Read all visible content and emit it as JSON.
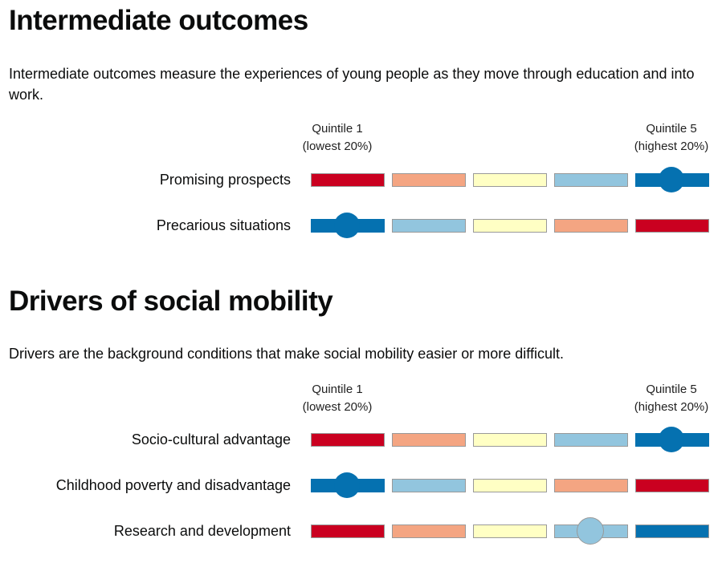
{
  "colors": {
    "q_red": "#ca0020",
    "q_orange": "#f4a582",
    "q_yellow": "#ffffc4",
    "q_lightblue": "#92c5de",
    "q_blue": "#0571b0"
  },
  "sections": [
    {
      "title": "Intermediate outcomes",
      "description": "Intermediate outcomes measure the experiences of young people as they move through education and into work.",
      "quintile_low": [
        "Quintile 1",
        "(lowest 20%)"
      ],
      "quintile_high": [
        "Quintile 5",
        "(highest 20%)"
      ],
      "rows": [
        {
          "label": "Promising prospects",
          "colors": [
            "#ca0020",
            "#f4a582",
            "#ffffc4",
            "#92c5de",
            "#0571b0"
          ],
          "marker_quintile": 5
        },
        {
          "label": "Precarious situations",
          "colors": [
            "#0571b0",
            "#92c5de",
            "#ffffc4",
            "#f4a582",
            "#ca0020"
          ],
          "marker_quintile": 1
        }
      ]
    },
    {
      "title": "Drivers of social mobility",
      "description": "Drivers are the background conditions that make social mobility easier or more difficult.",
      "quintile_low": [
        "Quintile 1",
        "(lowest 20%)"
      ],
      "quintile_high": [
        "Quintile 5",
        "(highest 20%)"
      ],
      "rows": [
        {
          "label": "Socio-cultural advantage",
          "colors": [
            "#ca0020",
            "#f4a582",
            "#ffffc4",
            "#92c5de",
            "#0571b0"
          ],
          "marker_quintile": 5
        },
        {
          "label": "Childhood poverty and disadvantage",
          "colors": [
            "#0571b0",
            "#92c5de",
            "#ffffc4",
            "#f4a582",
            "#ca0020"
          ],
          "marker_quintile": 1
        },
        {
          "label": "Research and development",
          "colors": [
            "#ca0020",
            "#f4a582",
            "#ffffc4",
            "#92c5de",
            "#0571b0"
          ],
          "marker_quintile": 4
        }
      ]
    }
  ]
}
